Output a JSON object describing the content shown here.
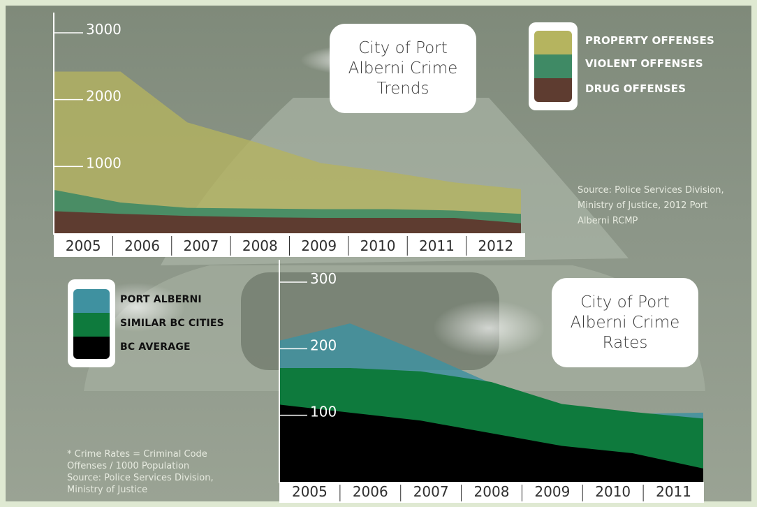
{
  "colors": {
    "page_background": "#dfe9d2",
    "photo_tone": "#8a9484",
    "property": "#b5b45f",
    "violent": "#3f8a65",
    "drug": "#5e3c30",
    "port_alberni": "#3f91a0",
    "similar_bc_cities": "#0e7a3d",
    "bc_average": "#000000"
  },
  "chart_data": [
    {
      "type": "area",
      "title": "City of Port Alberni Crime Trends",
      "x": [
        "2005",
        "2006",
        "2007",
        "2008",
        "2009",
        "2010",
        "2011",
        "2012"
      ],
      "y_ticks": [
        {
          "value": 1000,
          "label": "1000"
        },
        {
          "value": 2000,
          "label": "2000"
        },
        {
          "value": 3000,
          "label": "3000"
        }
      ],
      "ylim": [
        0,
        3000
      ],
      "grid": false,
      "legend_position": "top-right",
      "series": [
        {
          "name": "PROPERTY OFFENSES",
          "color": "#b5b45f",
          "top": [
            2420,
            2420,
            1660,
            1370,
            1050,
            920,
            760,
            660
          ]
        },
        {
          "name": "VIOLENT OFFENSES",
          "color": "#3f8a65",
          "top": [
            650,
            460,
            380,
            370,
            360,
            360,
            340,
            290
          ]
        },
        {
          "name": "DRUG OFFENSES",
          "color": "#5e3c30",
          "top": [
            330,
            290,
            260,
            240,
            230,
            230,
            230,
            150
          ]
        }
      ],
      "source": "Source: Police Services Division,\nMinistry of Justice, 2012 Port\nAlberni RCMP"
    },
    {
      "type": "area",
      "title": "City of Port Alberni Crime Rates",
      "x": [
        "2005",
        "2006",
        "2007",
        "2008",
        "2009",
        "2010",
        "2011"
      ],
      "y_ticks": [
        {
          "value": 100,
          "label": "100"
        },
        {
          "value": 200,
          "label": "200"
        },
        {
          "value": 300,
          "label": "300"
        }
      ],
      "ylim": [
        0,
        300
      ],
      "grid": false,
      "legend_position": "top-left",
      "series": [
        {
          "name": "PORT ALBERNI",
          "color": "#3f91a0",
          "top": [
            212,
            238,
            195,
            148,
            112,
            102,
            104
          ]
        },
        {
          "name": "SIMILAR BC CITIES",
          "color": "#0e7a3d",
          "top": [
            171,
            171,
            166,
            150,
            117,
            105,
            95
          ]
        },
        {
          "name": "BC AVERAGE",
          "color": "#000000",
          "top": [
            116,
            104,
            92,
            73,
            54,
            43,
            20
          ]
        }
      ],
      "note": "* Crime Rates = Criminal Code\nOffenses / 1000 Population\nSource: Police Services Division,\nMinistry of Justice"
    }
  ]
}
